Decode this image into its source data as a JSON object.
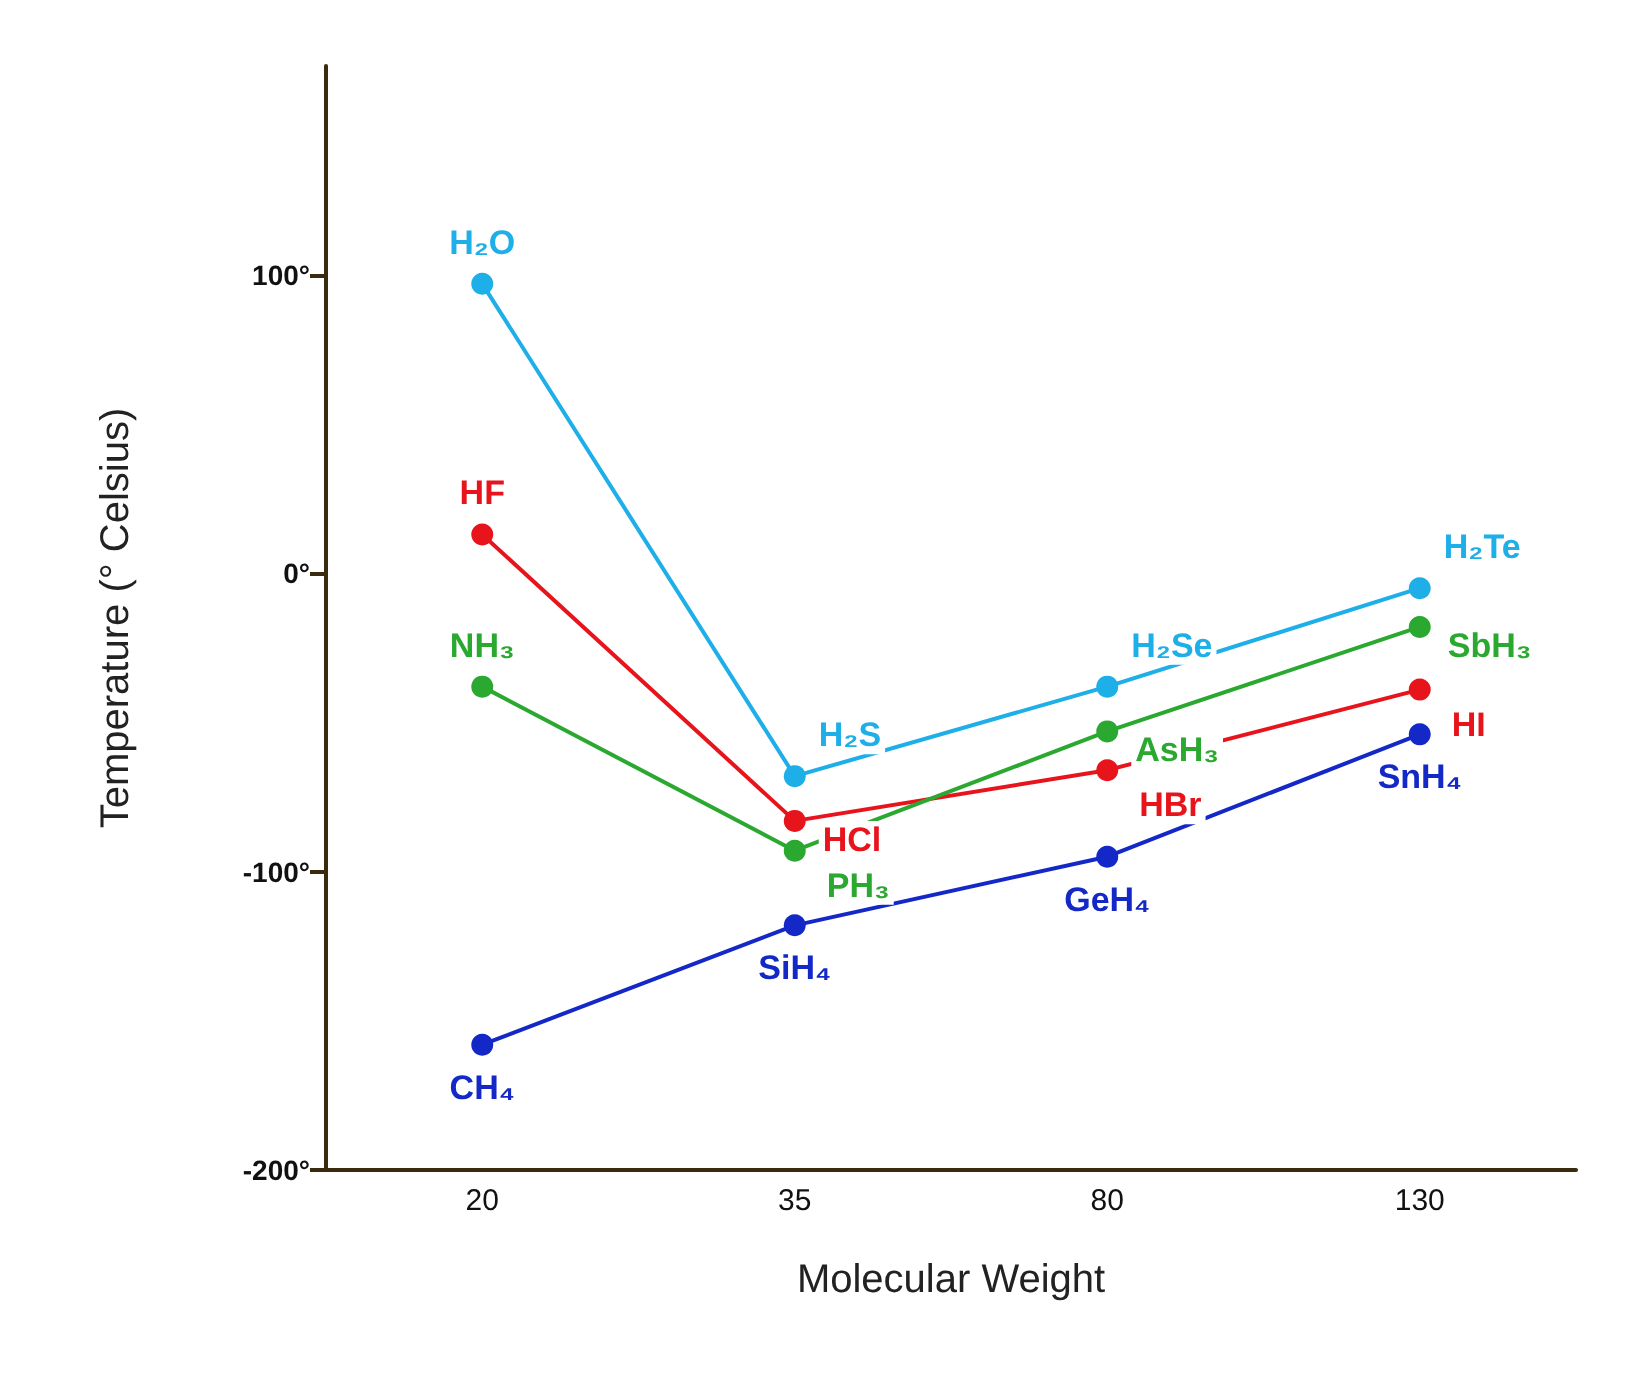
{
  "chart_data": {
    "type": "line",
    "xlabel": "Molecular Weight",
    "ylabel": "Temperature (° Celsius)",
    "categories": [
      "20",
      "35",
      "80",
      "130"
    ],
    "series": [
      {
        "color": "#1eaee8",
        "values": [
          97,
          -68,
          -38,
          -5
        ]
      },
      {
        "color": "#e8141c",
        "values": [
          13,
          -83,
          -66,
          -39
        ]
      },
      {
        "color": "#2aa830",
        "values": [
          -38,
          -93,
          -53,
          -18
        ]
      },
      {
        "color": "#1428c8",
        "values": [
          -158,
          -118,
          -95,
          -54
        ]
      }
    ],
    "ylim": [
      -200,
      170
    ],
    "yticks": [
      {
        "value": -200,
        "label": "-200°"
      },
      {
        "value": -100,
        "label": "-100°"
      },
      {
        "value": 0,
        "label": "0°"
      },
      {
        "value": 100,
        "label": "100°"
      }
    ],
    "grid": false,
    "marker": "circle",
    "line_style": "solid",
    "annotations": [
      {
        "text": "H₂O",
        "x": "20",
        "y": 97
      },
      {
        "text": "HF",
        "x": "20",
        "y": 13
      },
      {
        "text": "NH₃",
        "x": "20",
        "y": -38
      },
      {
        "text": "CH₄",
        "x": "20",
        "y": -158
      },
      {
        "text": "H₂S",
        "x": "35",
        "y": -68
      },
      {
        "text": "HCl",
        "x": "35",
        "y": -83
      },
      {
        "text": "PH₃",
        "x": "35",
        "y": -93
      },
      {
        "text": "SiH₄",
        "x": "35",
        "y": -118
      },
      {
        "text": "H₂Se",
        "x": "80",
        "y": -38
      },
      {
        "text": "AsH₃",
        "x": "80",
        "y": -53
      },
      {
        "text": "HBr",
        "x": "80",
        "y": -66
      },
      {
        "text": "GeH₄",
        "x": "80",
        "y": -95
      },
      {
        "text": "H₂Te",
        "x": "130",
        "y": -5
      },
      {
        "text": "SbH₃",
        "x": "130",
        "y": -18
      },
      {
        "text": "HI",
        "x": "130",
        "y": -39
      },
      {
        "text": "SnH₄",
        "x": "130",
        "y": -54
      }
    ]
  }
}
